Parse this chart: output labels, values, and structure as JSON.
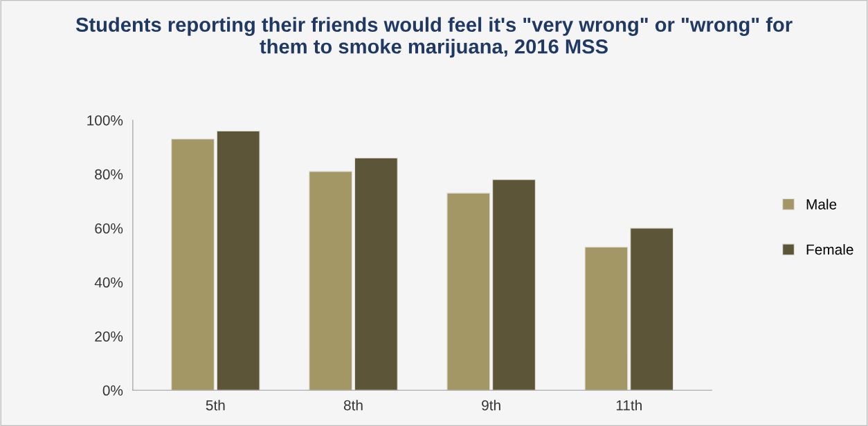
{
  "chart_data": {
    "type": "bar",
    "title": "Students reporting their friends would feel it's \"very wrong\" or \"wrong\" for them to smoke marijuana, 2016 MSS",
    "categories": [
      "5th",
      "8th",
      "9th",
      "11th"
    ],
    "series": [
      {
        "name": "Male",
        "color": "#a39766",
        "values": [
          93,
          81,
          73,
          53
        ]
      },
      {
        "name": "Female",
        "color": "#5c5538",
        "values": [
          96,
          86,
          78,
          60
        ]
      }
    ],
    "ylim": [
      0,
      100
    ],
    "yticks": [
      {
        "value": 0,
        "label": "0%"
      },
      {
        "value": 20,
        "label": "20%"
      },
      {
        "value": 40,
        "label": "40%"
      },
      {
        "value": 60,
        "label": "60%"
      },
      {
        "value": 80,
        "label": "80%"
      },
      {
        "value": 100,
        "label": "100%"
      }
    ],
    "grid": false,
    "legend": "right"
  }
}
